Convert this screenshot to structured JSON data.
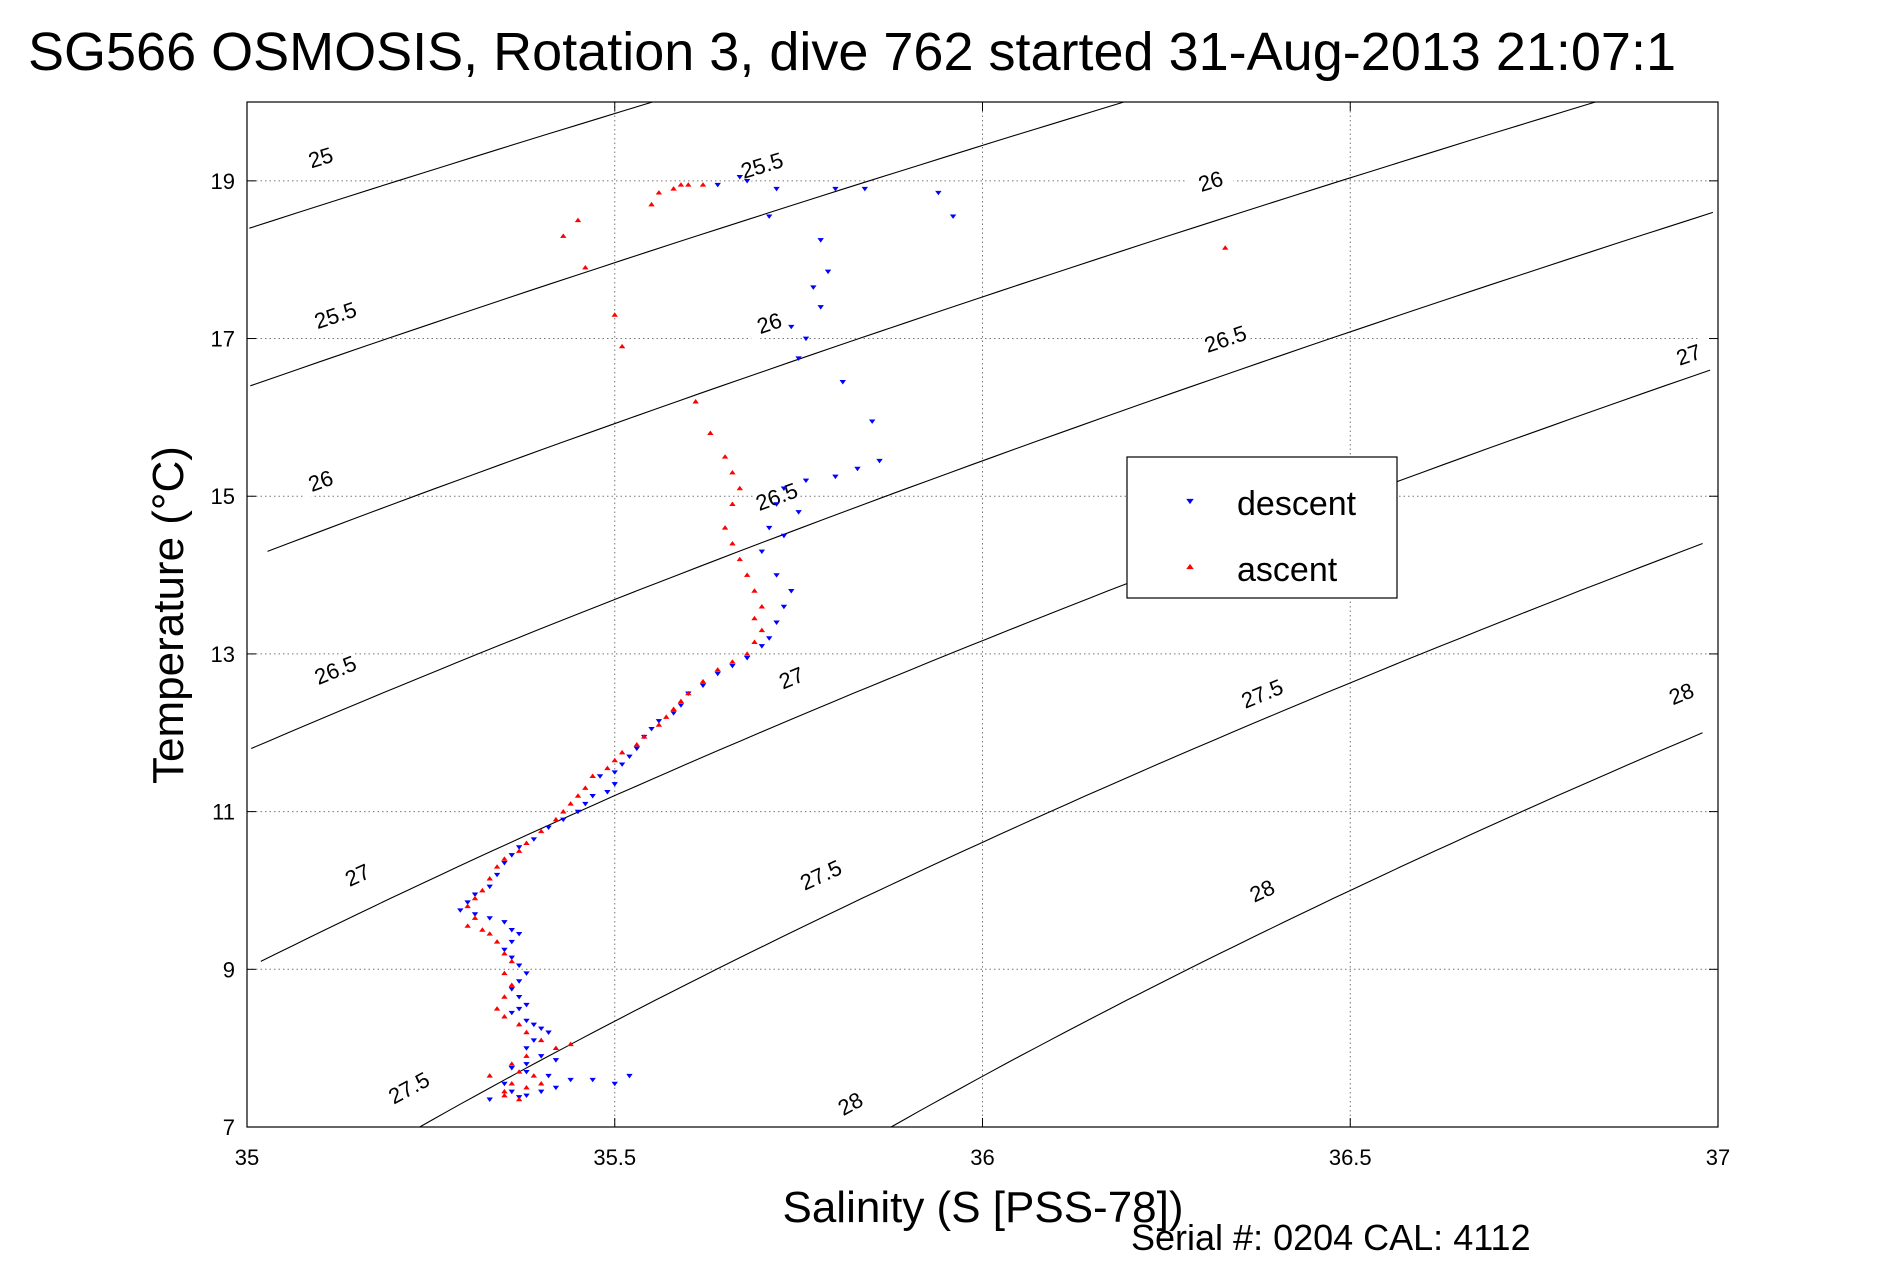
{
  "chart_data": {
    "type": "scatter",
    "title": "SG566 OSMOSIS, Rotation 3, dive 762 started 31-Aug-2013 21:07:1",
    "xlabel": "Salinity (S [PSS-78])",
    "ylabel": "Temperature (°C)",
    "xlim": [
      35,
      37
    ],
    "ylim": [
      7,
      20
    ],
    "x_ticks": [
      35,
      35.5,
      36,
      36.5,
      37
    ],
    "x_tick_labels": [
      "35",
      "35.5",
      "36",
      "36.5",
      "37"
    ],
    "y_ticks": [
      7,
      9,
      11,
      13,
      15,
      17,
      19
    ],
    "y_tick_labels": [
      "7",
      "9",
      "11",
      "13",
      "15",
      "17",
      "19"
    ],
    "grid": true,
    "legend_position": "right-center",
    "density_contours": [
      {
        "level": "25",
        "labels": [
          {
            "s": 35.1,
            "t": 19.3
          }
        ]
      },
      {
        "level": "25.5",
        "labels": [
          {
            "s": 35.12,
            "t": 17.3
          },
          {
            "s": 35.7,
            "t": 19.2
          }
        ]
      },
      {
        "level": "26",
        "labels": [
          {
            "s": 35.1,
            "t": 15.2
          },
          {
            "s": 35.71,
            "t": 17.2
          },
          {
            "s": 36.31,
            "t": 19.0
          }
        ]
      },
      {
        "level": "26.5",
        "labels": [
          {
            "s": 35.12,
            "t": 12.8
          },
          {
            "s": 35.72,
            "t": 15.0
          },
          {
            "s": 36.33,
            "t": 17.0
          }
        ]
      },
      {
        "level": "27",
        "labels": [
          {
            "s": 35.15,
            "t": 10.2
          },
          {
            "s": 35.74,
            "t": 12.7
          },
          {
            "s": 36.45,
            "t": 15.0
          },
          {
            "s": 36.96,
            "t": 16.8
          }
        ]
      },
      {
        "level": "27.5",
        "labels": [
          {
            "s": 35.22,
            "t": 7.5
          },
          {
            "s": 35.78,
            "t": 10.2
          },
          {
            "s": 36.38,
            "t": 12.5
          }
        ]
      },
      {
        "level": "28",
        "labels": [
          {
            "s": 35.82,
            "t": 7.3
          },
          {
            "s": 36.38,
            "t": 10.0
          },
          {
            "s": 36.95,
            "t": 12.5
          }
        ]
      }
    ],
    "series": [
      {
        "name": "descent",
        "color": "#0000ff",
        "marker": "triangle-down",
        "points": [
          [
            35.67,
            19.05
          ],
          [
            35.68,
            19.0
          ],
          [
            35.64,
            18.95
          ],
          [
            35.72,
            18.9
          ],
          [
            35.8,
            18.9
          ],
          [
            35.84,
            18.9
          ],
          [
            35.94,
            18.85
          ],
          [
            35.96,
            18.55
          ],
          [
            35.71,
            18.55
          ],
          [
            35.78,
            18.25
          ],
          [
            35.79,
            17.85
          ],
          [
            35.77,
            17.65
          ],
          [
            35.78,
            17.4
          ],
          [
            35.74,
            17.15
          ],
          [
            35.76,
            17.0
          ],
          [
            35.75,
            16.75
          ],
          [
            35.81,
            16.45
          ],
          [
            35.85,
            15.95
          ],
          [
            35.86,
            15.45
          ],
          [
            35.83,
            15.35
          ],
          [
            35.8,
            15.25
          ],
          [
            35.76,
            15.2
          ],
          [
            35.73,
            15.1
          ],
          [
            35.72,
            14.9
          ],
          [
            35.71,
            14.6
          ],
          [
            35.7,
            14.3
          ],
          [
            35.73,
            14.5
          ],
          [
            35.75,
            14.8
          ],
          [
            35.72,
            14.0
          ],
          [
            35.74,
            13.8
          ],
          [
            35.73,
            13.6
          ],
          [
            35.72,
            13.4
          ],
          [
            35.71,
            13.2
          ],
          [
            35.7,
            13.1
          ],
          [
            35.68,
            12.95
          ],
          [
            35.66,
            12.85
          ],
          [
            35.64,
            12.75
          ],
          [
            35.62,
            12.6
          ],
          [
            35.6,
            12.5
          ],
          [
            35.59,
            12.35
          ],
          [
            35.58,
            12.25
          ],
          [
            35.56,
            12.15
          ],
          [
            35.55,
            12.05
          ],
          [
            35.54,
            11.95
          ],
          [
            35.53,
            11.8
          ],
          [
            35.52,
            11.7
          ],
          [
            35.51,
            11.6
          ],
          [
            35.5,
            11.5
          ],
          [
            35.48,
            11.45
          ],
          [
            35.5,
            11.35
          ],
          [
            35.49,
            11.25
          ],
          [
            35.47,
            11.2
          ],
          [
            35.46,
            11.1
          ],
          [
            35.45,
            11.0
          ],
          [
            35.43,
            10.9
          ],
          [
            35.41,
            10.8
          ],
          [
            35.39,
            10.65
          ],
          [
            35.37,
            10.55
          ],
          [
            35.36,
            10.45
          ],
          [
            35.35,
            10.35
          ],
          [
            35.34,
            10.2
          ],
          [
            35.33,
            10.05
          ],
          [
            35.31,
            9.95
          ],
          [
            35.3,
            9.85
          ],
          [
            35.29,
            9.75
          ],
          [
            35.31,
            9.7
          ],
          [
            35.33,
            9.65
          ],
          [
            35.35,
            9.6
          ],
          [
            35.36,
            9.5
          ],
          [
            35.37,
            9.45
          ],
          [
            35.36,
            9.35
          ],
          [
            35.35,
            9.25
          ],
          [
            35.36,
            9.15
          ],
          [
            35.37,
            9.05
          ],
          [
            35.38,
            8.95
          ],
          [
            35.37,
            8.85
          ],
          [
            35.36,
            8.75
          ],
          [
            35.37,
            8.65
          ],
          [
            35.38,
            8.55
          ],
          [
            35.37,
            8.5
          ],
          [
            35.36,
            8.45
          ],
          [
            35.38,
            8.35
          ],
          [
            35.39,
            8.3
          ],
          [
            35.4,
            8.25
          ],
          [
            35.41,
            8.2
          ],
          [
            35.39,
            8.1
          ],
          [
            35.38,
            8.0
          ],
          [
            35.4,
            7.9
          ],
          [
            35.42,
            7.85
          ],
          [
            35.38,
            7.8
          ],
          [
            35.36,
            7.75
          ],
          [
            35.38,
            7.7
          ],
          [
            35.41,
            7.65
          ],
          [
            35.44,
            7.6
          ],
          [
            35.47,
            7.6
          ],
          [
            35.5,
            7.55
          ],
          [
            35.52,
            7.65
          ],
          [
            35.35,
            7.55
          ],
          [
            35.36,
            7.45
          ],
          [
            35.38,
            7.4
          ],
          [
            35.4,
            7.45
          ],
          [
            35.42,
            7.5
          ],
          [
            35.33,
            7.35
          ],
          [
            35.37,
            7.38
          ]
        ]
      },
      {
        "name": "ascent",
        "color": "#ff0000",
        "marker": "triangle-up",
        "points": [
          [
            35.62,
            18.95
          ],
          [
            35.6,
            18.95
          ],
          [
            35.58,
            18.9
          ],
          [
            35.56,
            18.85
          ],
          [
            35.59,
            18.95
          ],
          [
            35.55,
            18.7
          ],
          [
            35.45,
            18.5
          ],
          [
            35.43,
            18.3
          ],
          [
            35.46,
            17.9
          ],
          [
            35.5,
            17.3
          ],
          [
            35.51,
            16.9
          ],
          [
            35.61,
            16.2
          ],
          [
            35.63,
            15.8
          ],
          [
            35.65,
            15.5
          ],
          [
            35.66,
            15.3
          ],
          [
            35.67,
            15.1
          ],
          [
            35.66,
            14.9
          ],
          [
            35.65,
            14.6
          ],
          [
            35.66,
            14.4
          ],
          [
            35.67,
            14.2
          ],
          [
            35.68,
            14.0
          ],
          [
            35.69,
            13.8
          ],
          [
            35.7,
            13.6
          ],
          [
            35.69,
            13.45
          ],
          [
            35.7,
            13.3
          ],
          [
            35.69,
            13.15
          ],
          [
            35.68,
            13.0
          ],
          [
            35.66,
            12.9
          ],
          [
            35.64,
            12.8
          ],
          [
            35.62,
            12.65
          ],
          [
            35.6,
            12.5
          ],
          [
            35.59,
            12.4
          ],
          [
            35.58,
            12.3
          ],
          [
            35.57,
            12.2
          ],
          [
            35.56,
            12.1
          ],
          [
            35.54,
            11.95
          ],
          [
            35.53,
            11.85
          ],
          [
            35.51,
            11.75
          ],
          [
            35.5,
            11.65
          ],
          [
            35.49,
            11.55
          ],
          [
            35.47,
            11.45
          ],
          [
            35.46,
            11.3
          ],
          [
            35.45,
            11.2
          ],
          [
            35.44,
            11.1
          ],
          [
            35.43,
            11.0
          ],
          [
            35.42,
            10.9
          ],
          [
            35.4,
            10.75
          ],
          [
            35.38,
            10.6
          ],
          [
            35.37,
            10.5
          ],
          [
            35.35,
            10.4
          ],
          [
            35.34,
            10.3
          ],
          [
            35.33,
            10.15
          ],
          [
            35.32,
            10.0
          ],
          [
            35.31,
            9.9
          ],
          [
            35.3,
            9.8
          ],
          [
            35.31,
            9.65
          ],
          [
            35.3,
            9.55
          ],
          [
            35.32,
            9.5
          ],
          [
            35.33,
            9.45
          ],
          [
            35.34,
            9.35
          ],
          [
            35.35,
            9.2
          ],
          [
            35.36,
            9.1
          ],
          [
            35.35,
            8.95
          ],
          [
            35.36,
            8.8
          ],
          [
            35.35,
            8.65
          ],
          [
            35.34,
            8.5
          ],
          [
            35.35,
            8.4
          ],
          [
            35.37,
            8.3
          ],
          [
            35.38,
            8.2
          ],
          [
            35.4,
            8.1
          ],
          [
            35.42,
            8.0
          ],
          [
            35.44,
            8.05
          ],
          [
            35.38,
            7.9
          ],
          [
            35.36,
            7.8
          ],
          [
            35.37,
            7.7
          ],
          [
            35.39,
            7.65
          ],
          [
            35.36,
            7.55
          ],
          [
            35.35,
            7.45
          ],
          [
            35.38,
            7.5
          ],
          [
            35.4,
            7.55
          ],
          [
            35.33,
            7.65
          ],
          [
            35.35,
            7.4
          ],
          [
            35.37,
            7.35
          ],
          [
            36.33,
            18.15
          ]
        ]
      }
    ],
    "annotations": [
      "Serial #: 0204  CAL: 4112"
    ]
  }
}
